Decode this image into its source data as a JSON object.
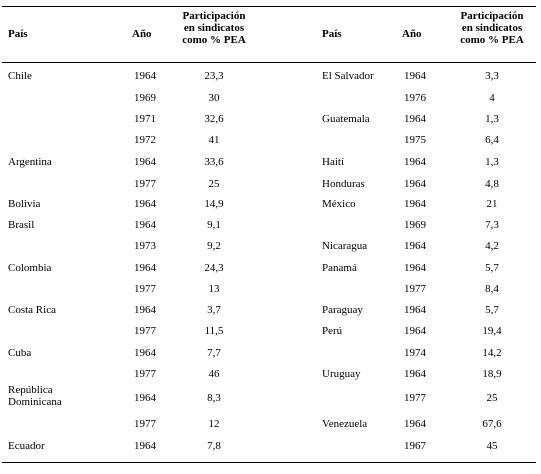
{
  "header": {
    "pais": "País",
    "anio": "Año",
    "participacion": "Participación en sindicatos como % PEA"
  },
  "table": {
    "left": [
      [
        "Chile",
        "1964",
        "23,3"
      ],
      [
        null,
        "1969",
        "30"
      ],
      [
        null,
        "1971",
        "32,6"
      ],
      [
        null,
        "1972",
        "41"
      ],
      [
        "Argentina",
        "1964",
        "33,6"
      ],
      [
        null,
        "1977",
        "25"
      ],
      [
        "Bolivia",
        "1964",
        "14,9"
      ],
      [
        "Brasil",
        "1964",
        "9,1"
      ],
      [
        null,
        "1973",
        "9,2"
      ],
      [
        "Colombia",
        "1964",
        "24,3"
      ],
      [
        null,
        "1977",
        "13"
      ],
      [
        "Costa Rica",
        "1964",
        "3,7"
      ],
      [
        null,
        "1977",
        "11,5"
      ],
      [
        "Cuba",
        "1964",
        "7,7"
      ],
      [
        null,
        "1977",
        "46"
      ],
      [
        "República Dominicana",
        "1964",
        "8,3"
      ],
      [
        null,
        "1977",
        "12"
      ],
      [
        "Ecuador",
        "1964",
        "7,8"
      ]
    ],
    "right": [
      [
        "El Salvador",
        "1964",
        "3,3"
      ],
      [
        null,
        "1976",
        "4"
      ],
      [
        "Guatemala",
        "1964",
        "1,3"
      ],
      [
        null,
        "1975",
        "6,4"
      ],
      [
        "Haití",
        "1964",
        "1,3"
      ],
      [
        "Honduras",
        "1964",
        "4,8"
      ],
      [
        "México",
        "1964",
        "21"
      ],
      [
        null,
        "1969",
        "7,3"
      ],
      [
        "Nicaragua",
        "1964",
        "4,2"
      ],
      [
        "Panamá",
        "1964",
        "5,7"
      ],
      [
        null,
        "1977",
        "8,4"
      ],
      [
        "Paraguay",
        "1964",
        "5,7"
      ],
      [
        "Perú",
        "1964",
        "19,4"
      ],
      [
        null,
        "1974",
        "14,2"
      ],
      [
        "Uruguay",
        "1964",
        "18,9"
      ],
      [
        null,
        "1977",
        "25"
      ],
      [
        "Venezuela",
        "1964",
        "67,6"
      ],
      [
        null,
        "1967",
        "45"
      ]
    ]
  }
}
